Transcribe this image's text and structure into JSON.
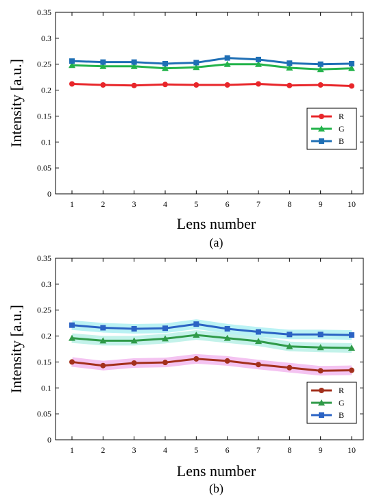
{
  "chart_data": [
    {
      "type": "line",
      "panel_label": "(a)",
      "xlabel": "Lens number",
      "ylabel": "Intensity [a.u.]",
      "x": [
        1,
        2,
        3,
        4,
        5,
        6,
        7,
        8,
        9,
        10
      ],
      "ylim": [
        0,
        0.35
      ],
      "yticks": [
        "0",
        "0.05",
        "0.1",
        "0.15",
        "0.2",
        "0.25",
        "0.3",
        "0.35"
      ],
      "grid": false,
      "legend": "right",
      "series": [
        {
          "name": "R",
          "color": "#e8262a",
          "marker": "circle",
          "values": [
            0.212,
            0.21,
            0.209,
            0.211,
            0.21,
            0.21,
            0.212,
            0.209,
            0.21,
            0.208
          ]
        },
        {
          "name": "G",
          "color": "#22b34a",
          "marker": "triangle",
          "values": [
            0.248,
            0.246,
            0.246,
            0.242,
            0.244,
            0.25,
            0.25,
            0.243,
            0.24,
            0.242
          ]
        },
        {
          "name": "B",
          "color": "#1f6fb5",
          "marker": "square",
          "values": [
            0.256,
            0.254,
            0.254,
            0.251,
            0.253,
            0.262,
            0.259,
            0.252,
            0.25,
            0.251
          ]
        }
      ]
    },
    {
      "type": "line",
      "panel_label": "(b)",
      "xlabel": "Lens number",
      "ylabel": "Intensity [a.u.]",
      "x": [
        1,
        2,
        3,
        4,
        5,
        6,
        7,
        8,
        9,
        10
      ],
      "ylim": [
        0,
        0.35
      ],
      "yticks": [
        "0",
        "0.05",
        "0.1",
        "0.15",
        "0.2",
        "0.25",
        "0.3",
        "0.35"
      ],
      "grid": false,
      "legend": "bottom-right",
      "series": [
        {
          "name": "R",
          "color": "#a3301c",
          "marker": "circle",
          "values": [
            0.15,
            0.143,
            0.148,
            0.149,
            0.156,
            0.152,
            0.145,
            0.139,
            0.133,
            0.134
          ],
          "band_color": "#f2b8ee"
        },
        {
          "name": "G",
          "color": "#2f9a48",
          "marker": "triangle",
          "values": [
            0.196,
            0.191,
            0.191,
            0.195,
            0.202,
            0.196,
            0.19,
            0.18,
            0.178,
            0.177
          ],
          "band_color": "#b9f0e6"
        },
        {
          "name": "B",
          "color": "#2b63c4",
          "marker": "square",
          "values": [
            0.221,
            0.216,
            0.214,
            0.215,
            0.223,
            0.214,
            0.208,
            0.203,
            0.203,
            0.202
          ],
          "band_color": "#aef0f2"
        }
      ]
    }
  ]
}
